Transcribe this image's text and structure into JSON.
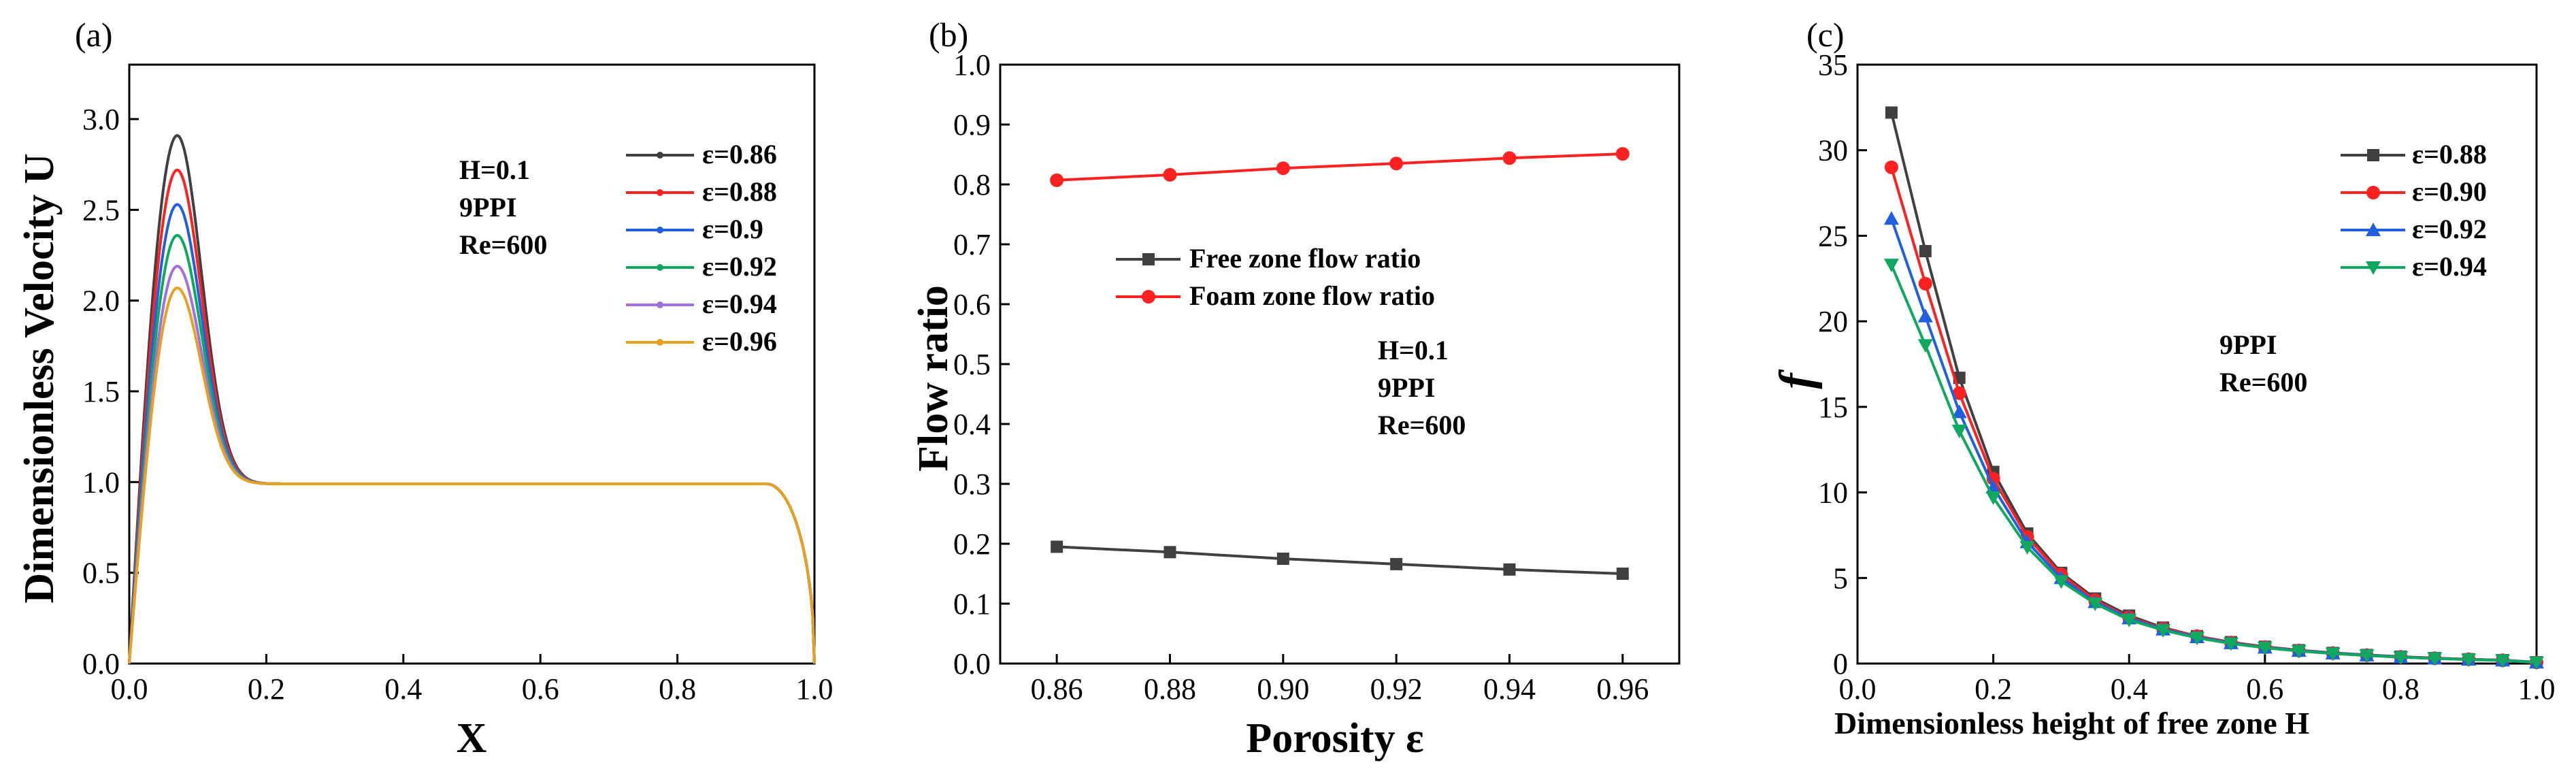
{
  "chart_data": [
    {
      "panel_label": "(a)",
      "type": "line",
      "xlabel": "X",
      "ylabel": "Dimensionless Velocity U",
      "xlim": [
        0,
        1.0
      ],
      "ylim": [
        0,
        3.3
      ],
      "xticks": [
        "0.0",
        "0.2",
        "0.4",
        "0.6",
        "0.8",
        "1.0"
      ],
      "yticks": [
        "0.0",
        "0.5",
        "1.0",
        "1.5",
        "2.0",
        "2.5",
        "3.0"
      ],
      "annotation": [
        "H=0.1",
        "9PPI",
        "Re=600"
      ],
      "legend_position": "top-right",
      "profile": {
        "peak_x": 0.07,
        "plateau": 0.99,
        "plateau_end_x": 0.93
      },
      "series": [
        {
          "name": "ε=0.86",
          "color": "#404040",
          "peak": 2.91
        },
        {
          "name": "ε=0.88",
          "color": "#ff2020",
          "peak": 2.72
        },
        {
          "name": "ε=0.9",
          "color": "#2060e0",
          "peak": 2.53
        },
        {
          "name": "ε=0.92",
          "color": "#10a860",
          "peak": 2.36
        },
        {
          "name": "ε=0.94",
          "color": "#a070e0",
          "peak": 2.19
        },
        {
          "name": "ε=0.96",
          "color": "#e8a020",
          "peak": 2.07
        }
      ]
    },
    {
      "panel_label": "(b)",
      "type": "line",
      "xlabel": "Porosity ε",
      "ylabel": "Flow ratio",
      "xlim": [
        0.85,
        0.97
      ],
      "ylim": [
        0,
        1.0
      ],
      "xticks": [
        "0.86",
        "0.88",
        "0.90",
        "0.92",
        "0.94",
        "0.96"
      ],
      "yticks": [
        "0.0",
        "0.1",
        "0.2",
        "0.3",
        "0.4",
        "0.5",
        "0.6",
        "0.7",
        "0.8",
        "0.9",
        "1.0"
      ],
      "annotation": [
        "H=0.1",
        "9PPI",
        "Re=600"
      ],
      "legend_position": "upper-center",
      "x": [
        0.86,
        0.88,
        0.9,
        0.92,
        0.94,
        0.96
      ],
      "series": [
        {
          "name": "Free  zone flow ratio",
          "color": "#404040",
          "marker": "square",
          "values": [
            0.195,
            0.186,
            0.175,
            0.166,
            0.157,
            0.15
          ]
        },
        {
          "name": "Foam zone flow ratio",
          "color": "#ff2020",
          "marker": "circle",
          "values": [
            0.807,
            0.816,
            0.827,
            0.835,
            0.844,
            0.851
          ]
        }
      ]
    },
    {
      "panel_label": "(c)",
      "type": "line",
      "xlabel": "Dimensionless height of free zone  H",
      "ylabel": "f",
      "xlim": [
        0,
        1.0
      ],
      "ylim": [
        0,
        35
      ],
      "xticks": [
        "0.0",
        "0.2",
        "0.4",
        "0.6",
        "0.8",
        "1.0"
      ],
      "yticks": [
        "0",
        "5",
        "10",
        "15",
        "20",
        "25",
        "30",
        "35"
      ],
      "annotation": [
        "9PPI",
        "Re=600"
      ],
      "legend_position": "top-right",
      "x": [
        0.05,
        0.1,
        0.15,
        0.2,
        0.25,
        0.3,
        0.35,
        0.4,
        0.45,
        0.5,
        0.55,
        0.6,
        0.65,
        0.7,
        0.75,
        0.8,
        0.85,
        0.9,
        0.95,
        1.0
      ],
      "series": [
        {
          "name": "ε=0.88",
          "color": "#404040",
          "marker": "square",
          "values": [
            32.2,
            24.1,
            16.7,
            11.2,
            7.6,
            5.3,
            3.8,
            2.8,
            2.1,
            1.6,
            1.25,
            0.98,
            0.78,
            0.62,
            0.5,
            0.4,
            0.32,
            0.25,
            0.2,
            0.08
          ]
        },
        {
          "name": "ε=0.90",
          "color": "#ff2020",
          "marker": "circle",
          "values": [
            29.0,
            22.2,
            15.8,
            10.8,
            7.4,
            5.2,
            3.7,
            2.7,
            2.05,
            1.6,
            1.23,
            0.96,
            0.76,
            0.61,
            0.49,
            0.39,
            0.31,
            0.25,
            0.19,
            0.07
          ]
        },
        {
          "name": "ε=0.92",
          "color": "#2060e0",
          "marker": "triangle-up",
          "values": [
            26.0,
            20.3,
            14.7,
            10.3,
            7.1,
            5.0,
            3.6,
            2.65,
            2.0,
            1.55,
            1.2,
            0.94,
            0.75,
            0.6,
            0.48,
            0.38,
            0.3,
            0.24,
            0.19,
            0.07
          ]
        },
        {
          "name": "ε=0.94",
          "color": "#10a860",
          "marker": "triangle-down",
          "values": [
            23.3,
            18.6,
            13.6,
            9.7,
            6.8,
            4.8,
            3.5,
            2.55,
            1.95,
            1.5,
            1.17,
            0.92,
            0.73,
            0.58,
            0.47,
            0.37,
            0.3,
            0.23,
            0.18,
            0.06
          ]
        }
      ]
    }
  ]
}
